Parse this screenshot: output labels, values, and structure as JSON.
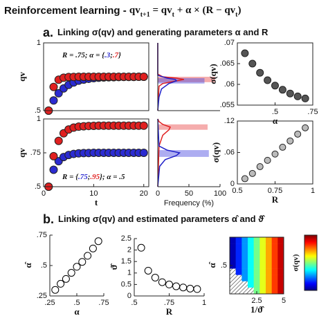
{
  "title": {
    "main": "Reinforcement learning - ",
    "formula": [
      {
        "text": "qv",
        "sub": "t+1"
      },
      {
        "text": " = qv",
        "sub": "t"
      },
      {
        "text": " + α × (R − qv",
        "sub": "t"
      },
      {
        "text": ")"
      }
    ]
  },
  "section_a": {
    "letter": "a.",
    "text": "Linking σ(qv) and generating parameters α and R"
  },
  "section_b": {
    "letter": "b.",
    "text": "Linking σ(qv) and estimated parameters α̂ and ϑ̂"
  },
  "chart_data": [
    {
      "type": "scatter",
      "ylabel": "qv",
      "marker": "filled",
      "box": true,
      "x": [
        1,
        2,
        3,
        4,
        5,
        6,
        7,
        8,
        9,
        10,
        11,
        12,
        13,
        14,
        15,
        16,
        17,
        18,
        19,
        20
      ],
      "xlim": [
        0,
        21
      ],
      "ylim": [
        0.5,
        1
      ],
      "yticks": [
        {
          "value": 0.5,
          "label": ".5"
        },
        1
      ],
      "series": [
        {
          "color": "#2b2bd0",
          "values": [
            0.5,
            0.575,
            0.628,
            0.664,
            0.69,
            0.708,
            0.721,
            0.729,
            0.735,
            0.74,
            0.743,
            0.745,
            0.746,
            0.747,
            0.748,
            0.749,
            0.749,
            0.749,
            0.75,
            0.75
          ]
        },
        {
          "color": "#e02020",
          "values": [
            0.5,
            0.675,
            0.728,
            0.743,
            0.748,
            0.749,
            0.75,
            0.75,
            0.75,
            0.75,
            0.75,
            0.75,
            0.75,
            0.75,
            0.75,
            0.75,
            0.75,
            0.75,
            0.75,
            0.75
          ]
        }
      ],
      "annotation": [
        {
          "text": "R = .75; α = {"
        },
        {
          "text": ".3",
          "color": "#2b2bd0"
        },
        {
          "text": ";"
        },
        {
          "text": ".7",
          "color": "#e02020"
        },
        {
          "text": "}"
        }
      ]
    },
    {
      "type": "scatter",
      "xlabel": "t",
      "ylabel": "qv",
      "marker": "filled",
      "box": true,
      "x": [
        1,
        2,
        3,
        4,
        5,
        6,
        7,
        8,
        9,
        10,
        11,
        12,
        13,
        14,
        15,
        16,
        17,
        18,
        19,
        20
      ],
      "xlim": [
        0,
        21
      ],
      "xticks": [
        0,
        10,
        20
      ],
      "ylim": [
        0.5,
        1
      ],
      "yticks": [
        {
          "value": 0.5,
          "label": ".5"
        },
        {
          "value": 0.75,
          "label": ".75"
        },
        1
      ],
      "series": [
        {
          "color": "#2b2bd0",
          "values": [
            0.5,
            0.625,
            0.688,
            0.719,
            0.734,
            0.742,
            0.746,
            0.748,
            0.749,
            0.75,
            0.75,
            0.75,
            0.75,
            0.75,
            0.75,
            0.75,
            0.75,
            0.75,
            0.75,
            0.75
          ]
        },
        {
          "color": "#e02020",
          "values": [
            0.5,
            0.725,
            0.838,
            0.894,
            0.922,
            0.936,
            0.943,
            0.946,
            0.948,
            0.949,
            0.95,
            0.95,
            0.95,
            0.95,
            0.95,
            0.95,
            0.95,
            0.95,
            0.95,
            0.95
          ]
        }
      ],
      "annotation": [
        {
          "text": "R = {"
        },
        {
          "text": ".75",
          "color": "#2b2bd0"
        },
        {
          "text": ";"
        },
        {
          "text": ".95",
          "color": "#e02020"
        },
        {
          "text": "}; α = .5"
        }
      ]
    },
    {
      "type": "histogram",
      "orientation": "horizontal",
      "box": false,
      "xlim": [
        0,
        100
      ],
      "ylim": [
        0.5,
        1
      ],
      "series": [
        {
          "color": "#e84a4a",
          "bins": [
            0.71,
            0.75
          ],
          "values": [
            92
          ]
        },
        {
          "color": "#4a4ae0",
          "bins": [
            0.7,
            0.74
          ],
          "values": [
            75
          ]
        }
      ],
      "curves": [
        {
          "color": "#e02020",
          "y": [
            0.5,
            0.68,
            0.7,
            0.72,
            0.73,
            0.74,
            0.75,
            0.77,
            1
          ],
          "values": [
            0,
            2,
            8,
            30,
            42,
            30,
            8,
            0,
            0
          ]
        },
        {
          "color": "#2020c8",
          "y": [
            0.5,
            0.6,
            0.66,
            0.7,
            0.72,
            0.73,
            0.74,
            0.76,
            1
          ],
          "values": [
            0,
            2,
            6,
            18,
            30,
            28,
            15,
            0,
            0
          ]
        }
      ]
    },
    {
      "type": "histogram",
      "orientation": "horizontal",
      "box": false,
      "xlabel": "Frequency (%)",
      "xlim": [
        0,
        100
      ],
      "xticks": [
        0,
        50,
        100
      ],
      "ylim": [
        0.5,
        1
      ],
      "series": [
        {
          "color": "#e84a4a",
          "bins": [
            0.92,
            0.96
          ],
          "values": [
            80
          ]
        },
        {
          "color": "#4a4ae0",
          "bins": [
            0.72,
            0.77
          ],
          "values": [
            82
          ]
        }
      ],
      "curves": [
        {
          "color": "#e02020",
          "y": [
            0.5,
            0.8,
            0.88,
            0.92,
            0.94,
            0.96,
            0.98,
            1
          ],
          "values": [
            0,
            2,
            8,
            18,
            20,
            8,
            2,
            0
          ]
        },
        {
          "color": "#2020c8",
          "y": [
            0.5,
            0.65,
            0.7,
            0.73,
            0.75,
            0.77,
            0.8,
            1
          ],
          "values": [
            0,
            3,
            12,
            30,
            35,
            15,
            2,
            0
          ]
        }
      ]
    },
    {
      "type": "scatter",
      "xlabel": "α",
      "ylabel": "σ(qv)",
      "marker": "filled",
      "box": true,
      "x": [
        0.3,
        0.35,
        0.4,
        0.45,
        0.5,
        0.55,
        0.6,
        0.65,
        0.7
      ],
      "xlim": [
        0.25,
        0.75
      ],
      "xticks": [
        {
          "value": 0.5,
          "label": ".5"
        },
        {
          "value": 0.75,
          "label": ".75"
        }
      ],
      "ylim": [
        0.055,
        0.07
      ],
      "yticks": [
        {
          "value": 0.055,
          "label": ".055"
        },
        {
          "value": 0.06,
          "label": ".06"
        },
        {
          "value": 0.065,
          "label": ".065"
        },
        {
          "value": 0.07,
          "label": ".07"
        }
      ],
      "series": [
        {
          "color": "#555555",
          "values": [
            0.0675,
            0.065,
            0.0628,
            0.061,
            0.0597,
            0.0587,
            0.0578,
            0.0571,
            0.0566
          ]
        }
      ]
    },
    {
      "type": "scatter",
      "xlabel": "R",
      "ylabel": "σ(qv)",
      "marker": "filled",
      "box": true,
      "x": [
        0.55,
        0.6,
        0.65,
        0.7,
        0.75,
        0.8,
        0.85,
        0.9,
        0.95
      ],
      "xlim": [
        0.5,
        1
      ],
      "xticks": [
        0.5,
        0.75,
        1
      ],
      "ylim": [
        0,
        0.12
      ],
      "yticks": [
        0,
        {
          "value": 0.06,
          "label": ".06"
        },
        {
          "value": 0.12,
          "label": ".12"
        }
      ],
      "series": [
        {
          "color": "#bbbbbb",
          "values": [
            0.01,
            0.02,
            0.033,
            0.045,
            0.057,
            0.07,
            0.082,
            0.095,
            0.107
          ]
        }
      ]
    },
    {
      "type": "scatter",
      "xlabel": "α",
      "ylabel": "α̂",
      "marker": "open",
      "box": false,
      "x": [
        0.3,
        0.35,
        0.4,
        0.45,
        0.5,
        0.55,
        0.6,
        0.65,
        0.7
      ],
      "xlim": [
        0.25,
        0.75
      ],
      "xticks": [
        {
          "value": 0.25,
          "label": ".25"
        },
        {
          "value": 0.5,
          "label": ".5"
        },
        {
          "value": 0.75,
          "label": ".75"
        }
      ],
      "ylim": [
        0.25,
        0.75
      ],
      "yticks": [
        {
          "value": 0.25,
          "label": ".25"
        },
        {
          "value": 0.5,
          "label": ".5"
        },
        {
          "value": 0.75,
          "label": ".75"
        }
      ],
      "series": [
        {
          "color": "#000000",
          "values": [
            0.3,
            0.35,
            0.39,
            0.44,
            0.49,
            0.53,
            0.58,
            0.64,
            0.7
          ]
        }
      ]
    },
    {
      "type": "scatter",
      "xlabel": "R",
      "ylabel": "ϑ̂",
      "marker": "open",
      "box": false,
      "x": [
        0.55,
        0.6,
        0.65,
        0.7,
        0.75,
        0.8,
        0.85,
        0.9,
        0.95
      ],
      "xlim": [
        0.5,
        1
      ],
      "xticks": [
        {
          "value": 0.5,
          "label": ".5"
        },
        {
          "value": 0.75,
          "label": ".75"
        },
        1
      ],
      "ylim": [
        0,
        2.5
      ],
      "yticks": [
        0,
        0.5,
        1,
        1.5,
        2,
        2.5
      ],
      "series": [
        {
          "color": "#000000",
          "values": [
            2.1,
            1.1,
            0.8,
            0.6,
            0.5,
            0.42,
            0.37,
            0.32,
            0.3
          ]
        }
      ]
    },
    {
      "type": "heatmap",
      "xlabel": "1/ϑ̂",
      "ylabel": "α̂",
      "colorbar_label": "σ(qv)",
      "colormap": "jet",
      "clim": [
        0,
        1
      ],
      "box": true,
      "xlim": [
        0,
        5
      ],
      "xticks": [
        2.5,
        5
      ],
      "ylim": [
        0.25,
        0.75
      ],
      "yticks": [
        {
          "value": 0.5,
          "label": ".5"
        }
      ],
      "z": [
        [
          0.05,
          0.16,
          0.27,
          0.38,
          0.49,
          0.6,
          0.71,
          0.82,
          0.93
        ],
        [
          0.05,
          0.16,
          0.27,
          0.38,
          0.49,
          0.6,
          0.71,
          0.82,
          0.93
        ],
        [
          0.05,
          0.16,
          0.27,
          0.38,
          0.49,
          0.6,
          0.71,
          0.82,
          0.93
        ],
        [
          0.05,
          0.16,
          0.27,
          0.38,
          0.49,
          0.6,
          0.71,
          0.82,
          0.93
        ],
        [
          0.05,
          0.16,
          0.27,
          0.38,
          0.49,
          0.6,
          0.71,
          0.82,
          0.93
        ],
        [
          null,
          0.16,
          0.27,
          0.38,
          0.49,
          0.6,
          0.71,
          0.82,
          0.93
        ],
        [
          null,
          null,
          0.27,
          0.38,
          0.49,
          0.6,
          0.71,
          0.82,
          0.93
        ],
        [
          null,
          null,
          null,
          0.38,
          0.49,
          0.6,
          0.71,
          0.82,
          0.93
        ],
        [
          null,
          null,
          null,
          null,
          0.49,
          0.6,
          0.71,
          0.82,
          0.93
        ]
      ]
    }
  ]
}
